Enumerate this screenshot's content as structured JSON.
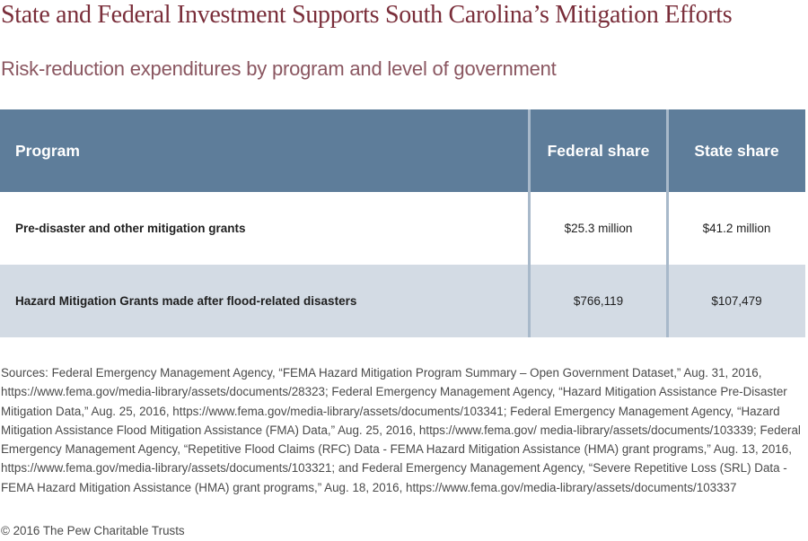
{
  "title": "State and Federal Investment Supports South Carolina’s Mitigation Efforts",
  "subtitle": "Risk-reduction expenditures by program and level of government",
  "table": {
    "headers": [
      "Program",
      "Federal share",
      "State share"
    ],
    "rows": [
      {
        "program": "Pre-disaster and other mitigation grants",
        "federal": "$25.3 million",
        "state": "$41.2 million"
      },
      {
        "program": "Hazard Mitigation Grants made after flood-related disasters",
        "federal": "$766,119",
        "state": "$107,479"
      }
    ]
  },
  "chart_data": {
    "type": "table",
    "title": "State and Federal Investment Supports South Carolina’s Mitigation Efforts",
    "subtitle": "Risk-reduction expenditures by program and level of government",
    "columns": [
      "Program",
      "Federal share",
      "State share"
    ],
    "rows": [
      [
        "Pre-disaster and other mitigation grants",
        "$25.3 million",
        "$41.2 million"
      ],
      [
        "Hazard Mitigation Grants made after flood-related disasters",
        "$766,119",
        "$107,479"
      ]
    ]
  },
  "sources": "Sources: Federal Emergency Management Agency, “FEMA Hazard Mitigation Program Summary – Open Government Dataset,” Aug. 31, 2016, https://www.fema.gov/media-library/assets/documents/28323; Federal Emergency Management Agency, “Hazard Mitigation Assistance Pre-Disaster Mitigation Data,” Aug. 25, 2016, https://www.fema.gov/media-library/assets/documents/103341; Federal Emergency Management Agency, “Hazard Mitigation Assistance Flood Mitigation Assistance (FMA) Data,” Aug. 25, 2016, https://www.fema.gov/ media-library/assets/documents/103339; Federal Emergency Management Agency, “Repetitive Flood Claims (RFC) Data - FEMA Hazard Mitigation Assistance (HMA) grant programs,”  Aug. 13, 2016, https://www.fema.gov/media-library/assets/documents/103321; and Federal Emergency Management Agency, “Severe Repetitive Loss (SRL) Data - FEMA Hazard Mitigation Assistance (HMA) grant programs,” Aug. 18, 2016, https://www.fema.gov/media-library/assets/documents/103337",
  "copyright": "© 2016 The Pew Charitable Trusts",
  "colors": {
    "title": "#7a2e3a",
    "subtitle": "#8a5660",
    "header_bg": "#5e7d9a",
    "row_alt_bg": "#d3dbe4",
    "divider": "#a8b9ca"
  }
}
